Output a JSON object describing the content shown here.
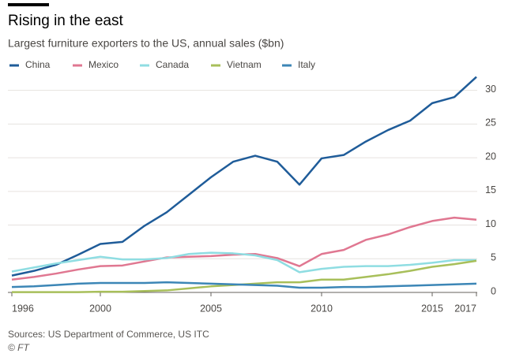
{
  "chart_data": {
    "type": "line",
    "title": "Rising in the east",
    "subtitle": "Largest furniture exporters to the US, annual sales ($bn)",
    "x": [
      1996,
      1997,
      1998,
      1999,
      2000,
      2001,
      2002,
      2003,
      2004,
      2005,
      2006,
      2007,
      2008,
      2009,
      2010,
      2011,
      2012,
      2013,
      2014,
      2015,
      2016,
      2017
    ],
    "series": [
      {
        "name": "China",
        "color": "#1f5c99",
        "values": [
          2.5,
          3.2,
          4.1,
          5.6,
          7.2,
          7.5,
          9.9,
          11.9,
          14.5,
          17.1,
          19.4,
          20.3,
          19.4,
          16.0,
          19.9,
          20.4,
          22.4,
          24.1,
          25.5,
          28.1,
          29.0,
          32.0
        ]
      },
      {
        "name": "Mexico",
        "color": "#e07791",
        "values": [
          1.9,
          2.3,
          2.8,
          3.4,
          3.9,
          4.0,
          4.6,
          5.2,
          5.3,
          5.4,
          5.6,
          5.7,
          5.1,
          3.9,
          5.7,
          6.3,
          7.8,
          8.6,
          9.7,
          10.6,
          11.1,
          10.8
        ]
      },
      {
        "name": "Canada",
        "color": "#8fdde2",
        "values": [
          3.1,
          3.7,
          4.3,
          4.8,
          5.3,
          4.9,
          4.9,
          5.1,
          5.7,
          5.9,
          5.8,
          5.5,
          4.8,
          3.0,
          3.5,
          3.8,
          3.9,
          3.9,
          4.1,
          4.4,
          4.8,
          4.8
        ]
      },
      {
        "name": "Vietnam",
        "color": "#a8bf5a",
        "values": [
          0.05,
          0.05,
          0.05,
          0.05,
          0.1,
          0.1,
          0.2,
          0.3,
          0.6,
          0.9,
          1.1,
          1.3,
          1.5,
          1.5,
          1.9,
          1.9,
          2.3,
          2.7,
          3.2,
          3.8,
          4.2,
          4.7
        ]
      },
      {
        "name": "Italy",
        "color": "#3c86b6",
        "values": [
          0.8,
          0.9,
          1.1,
          1.3,
          1.4,
          1.4,
          1.4,
          1.5,
          1.4,
          1.3,
          1.2,
          1.1,
          1.0,
          0.7,
          0.7,
          0.8,
          0.8,
          0.9,
          1.0,
          1.1,
          1.2,
          1.3
        ]
      }
    ],
    "xlim": [
      1996,
      2017
    ],
    "xticks": [
      1996,
      2000,
      2005,
      2010,
      2015,
      2017
    ],
    "ylim": [
      0,
      33
    ],
    "yticks": [
      0,
      5,
      10,
      15,
      20,
      25,
      30
    ],
    "grid": true,
    "source": "Sources: US Department of Commerce, US ITC",
    "credit": "© FT"
  }
}
